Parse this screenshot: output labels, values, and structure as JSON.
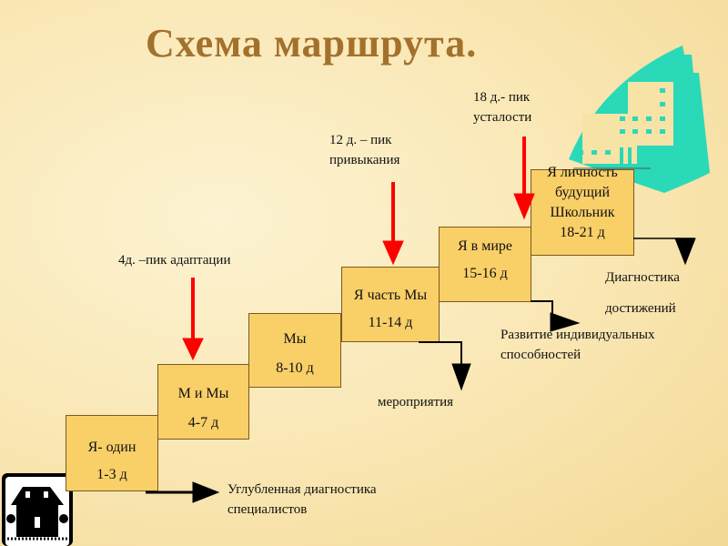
{
  "title": "Схема маршрута.",
  "steps": [
    {
      "name": "Я- один",
      "days": "1-3 д"
    },
    {
      "name": "М и Мы",
      "days": "4-7 д"
    },
    {
      "name": "Мы",
      "days": "8-10 д"
    },
    {
      "name": "Я часть Мы",
      "days": "11-14 д"
    },
    {
      "name": "Я в мире",
      "days": "15-16 д"
    },
    {
      "name": "Я личность будущий Школьник",
      "days": "18-21 д"
    }
  ],
  "peaks": [
    {
      "text": "4д. –пик адаптации"
    },
    {
      "line1": "12 д. – пик",
      "line2": "привыкания"
    },
    {
      "line1": "18 д.- пик",
      "line2": "усталости"
    }
  ],
  "outcomes": {
    "diagnostics_line1": "Углубленная диагностика",
    "diagnostics_line2": "специалистов",
    "events": "мероприятия",
    "development_line1": "Развитие индивидуальных",
    "development_line2": "способностей",
    "achievements_line1": "Диагностика",
    "achievements_line2": "достижений"
  },
  "colors": {
    "box": "#f9cf68",
    "peak_arrow": "#ff0000",
    "title": "#a3712c",
    "building": "#2ad9b8"
  }
}
